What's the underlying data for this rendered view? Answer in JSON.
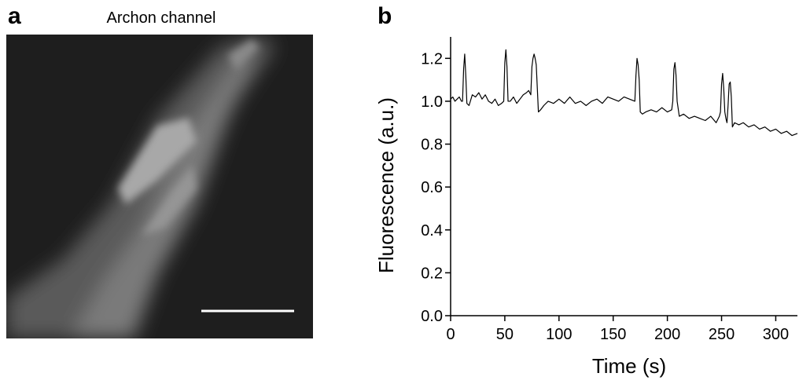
{
  "panel_a": {
    "label": "a",
    "title": "Archon channel"
  },
  "chart_data": {
    "type": "line",
    "panel_label": "b",
    "xlabel": "Time (s)",
    "ylabel": "Fluorescence (a.u.)",
    "color": "#000000",
    "xlim": [
      0,
      320
    ],
    "xticks": [
      0,
      50,
      100,
      150,
      200,
      250,
      300
    ],
    "ylim": [
      0,
      1.3
    ],
    "yticks": [
      {
        "value": 0,
        "label": "0.0"
      },
      0.2,
      0.4,
      0.6,
      0.8,
      {
        "value": 1,
        "label": "1.0"
      },
      1.2
    ],
    "x": [
      0,
      2,
      4,
      6,
      8,
      10,
      11,
      12,
      13,
      14,
      15,
      17,
      20,
      23,
      26,
      29,
      32,
      35,
      38,
      41,
      44,
      47,
      49,
      50,
      51,
      52,
      53,
      55,
      58,
      61,
      64,
      67,
      70,
      72,
      74,
      75,
      76,
      77,
      78,
      79,
      80,
      81,
      83,
      86,
      90,
      95,
      100,
      105,
      110,
      115,
      120,
      125,
      130,
      135,
      140,
      145,
      150,
      155,
      160,
      165,
      170,
      171,
      172,
      173,
      174,
      175,
      177,
      180,
      185,
      190,
      195,
      200,
      204,
      205,
      206,
      207,
      208,
      209,
      211,
      215,
      220,
      225,
      230,
      235,
      240,
      245,
      248,
      249,
      250,
      251,
      252,
      253,
      254,
      255,
      256,
      257,
      258,
      259,
      260,
      262,
      266,
      270,
      275,
      280,
      285,
      290,
      295,
      300,
      305,
      310,
      315,
      320
    ],
    "values": [
      1.01,
      1.02,
      1.0,
      1.01,
      1.02,
      1.0,
      1.0,
      1.15,
      1.22,
      1.12,
      0.99,
      0.98,
      1.03,
      1.02,
      1.04,
      1.01,
      1.03,
      1.0,
      0.99,
      1.01,
      0.98,
      0.99,
      1.0,
      1.18,
      1.24,
      1.16,
      1.0,
      1.0,
      1.02,
      0.99,
      1.01,
      1.03,
      1.04,
      1.05,
      1.03,
      1.16,
      1.2,
      1.22,
      1.2,
      1.17,
      1.06,
      0.95,
      0.96,
      0.98,
      1.0,
      0.99,
      1.01,
      0.99,
      1.02,
      0.99,
      1.0,
      0.98,
      1.0,
      1.01,
      0.99,
      1.02,
      1.01,
      1.0,
      1.02,
      1.01,
      1.0,
      1.12,
      1.2,
      1.17,
      1.1,
      0.95,
      0.94,
      0.95,
      0.96,
      0.95,
      0.97,
      0.95,
      0.96,
      1.0,
      1.15,
      1.18,
      1.12,
      1.0,
      0.93,
      0.94,
      0.92,
      0.93,
      0.92,
      0.91,
      0.93,
      0.9,
      0.93,
      0.95,
      1.08,
      1.13,
      1.06,
      0.95,
      0.92,
      0.9,
      0.98,
      1.08,
      1.09,
      1.02,
      0.88,
      0.9,
      0.89,
      0.9,
      0.88,
      0.89,
      0.87,
      0.88,
      0.86,
      0.87,
      0.85,
      0.86,
      0.84,
      0.85
    ]
  }
}
